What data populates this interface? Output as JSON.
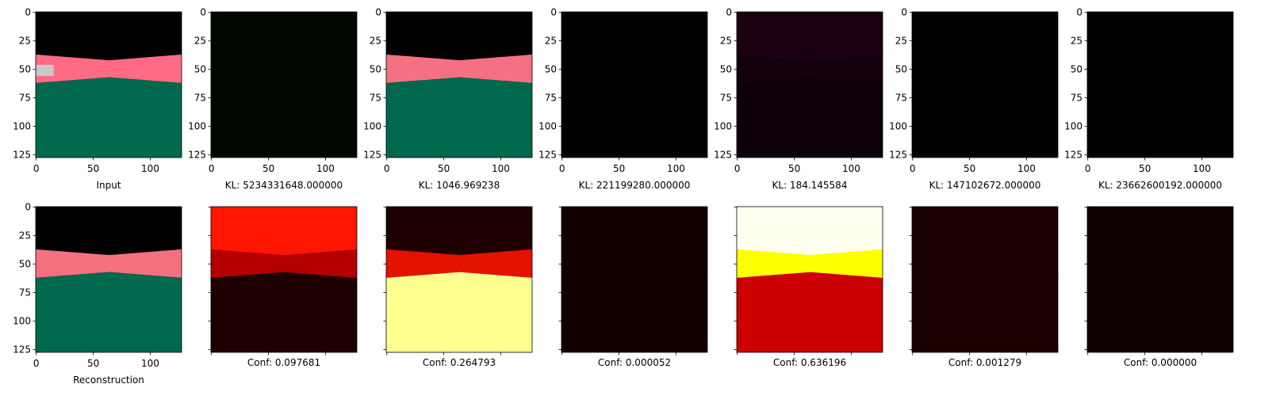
{
  "figure": {
    "type": "image-grid",
    "xlim": [
      -0.5,
      127.5
    ],
    "ylim": [
      127.5,
      -0.5
    ],
    "xticks": [
      0,
      50,
      100
    ],
    "yticks": [
      0,
      25,
      50,
      75,
      100,
      125
    ],
    "panels": [
      {
        "xlabel": "Input",
        "tick_labels": true
      },
      {
        "xlabel": "KL: 5234331648.000000",
        "tick_labels": true
      },
      {
        "xlabel": "KL: 1046.969238",
        "tick_labels": true
      },
      {
        "xlabel": "KL: 221199280.000000",
        "tick_labels": true
      },
      {
        "xlabel": "KL: 184.145584",
        "tick_labels": true
      },
      {
        "xlabel": "KL: 147102672.000000",
        "tick_labels": true
      },
      {
        "xlabel": "KL: 23662600192.000000",
        "tick_labels": true
      },
      {
        "xlabel": "Reconstruction",
        "tick_labels": true
      },
      {
        "xlabel": "Conf: 0.097681",
        "tick_labels": false
      },
      {
        "xlabel": "Conf: 0.264793",
        "tick_labels": false
      },
      {
        "xlabel": "Conf: 0.000052",
        "tick_labels": false
      },
      {
        "xlabel": "Conf: 0.636196",
        "tick_labels": false
      },
      {
        "xlabel": "Conf: 0.001279",
        "tick_labels": false
      },
      {
        "xlabel": "Conf: 0.000000",
        "tick_labels": false
      }
    ]
  }
}
